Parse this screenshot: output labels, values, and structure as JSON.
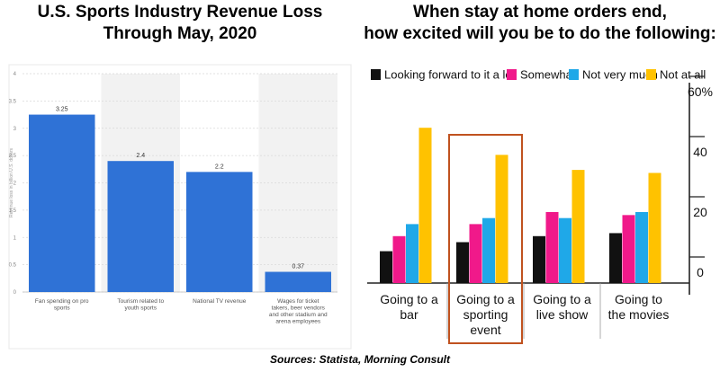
{
  "left_title": "U.S. Sports Industry Revenue Loss Through May, 2020",
  "right_title": "When stay at home orders end, how excited will you be to do the following:",
  "source": "Sources: Statista, Morning Consult",
  "colors": {
    "bar_blue": "#2f72d6",
    "band_gray": "#f2f2f2",
    "highlight_box": "#c0521f",
    "series": [
      "#111111",
      "#f0198a",
      "#1fa8e8",
      "#ffc200"
    ]
  },
  "chart_data": [
    {
      "type": "bar",
      "title": "U.S. Sports Industry Revenue Loss Through May, 2020",
      "ylabel": "Revenue loss in billion U.S. dollars",
      "xlabel": "",
      "ylim": [
        0,
        4
      ],
      "yticks": [
        "0",
        "0.5",
        "1",
        "1.5",
        "2",
        "2.5",
        "3",
        "3.5",
        "4"
      ],
      "categories": [
        "Fan spending on pro sports",
        "Tourism related to youth sports",
        "National TV revenue",
        "Wages for ticket takers, beer vendors and other stadium and arena employees"
      ],
      "values": [
        3.25,
        2.4,
        2.2,
        0.37
      ],
      "value_labels": [
        "3.25",
        "2.4",
        "2.2",
        "0.37"
      ],
      "grid": true
    },
    {
      "type": "bar",
      "title": "When stay at home orders end, how excited will you be to do the following:",
      "ylim": [
        0,
        60
      ],
      "yticks": [
        "0",
        "20",
        "40",
        "60%"
      ],
      "grid": false,
      "legend_position": "top",
      "categories": [
        "Going to a bar",
        "Going to a sporting event",
        "Going to a live show",
        "Going to the movies"
      ],
      "highlighted_category": "Going to a sporting event",
      "series": [
        {
          "name": "Looking forward to it a lot",
          "values": [
            7,
            10,
            12,
            13
          ]
        },
        {
          "name": "Somewhat",
          "values": [
            12,
            16,
            20,
            19
          ]
        },
        {
          "name": "Not very much",
          "values": [
            16,
            18,
            18,
            20
          ]
        },
        {
          "name": "Not at all",
          "values": [
            48,
            39,
            34,
            33
          ]
        }
      ]
    }
  ]
}
